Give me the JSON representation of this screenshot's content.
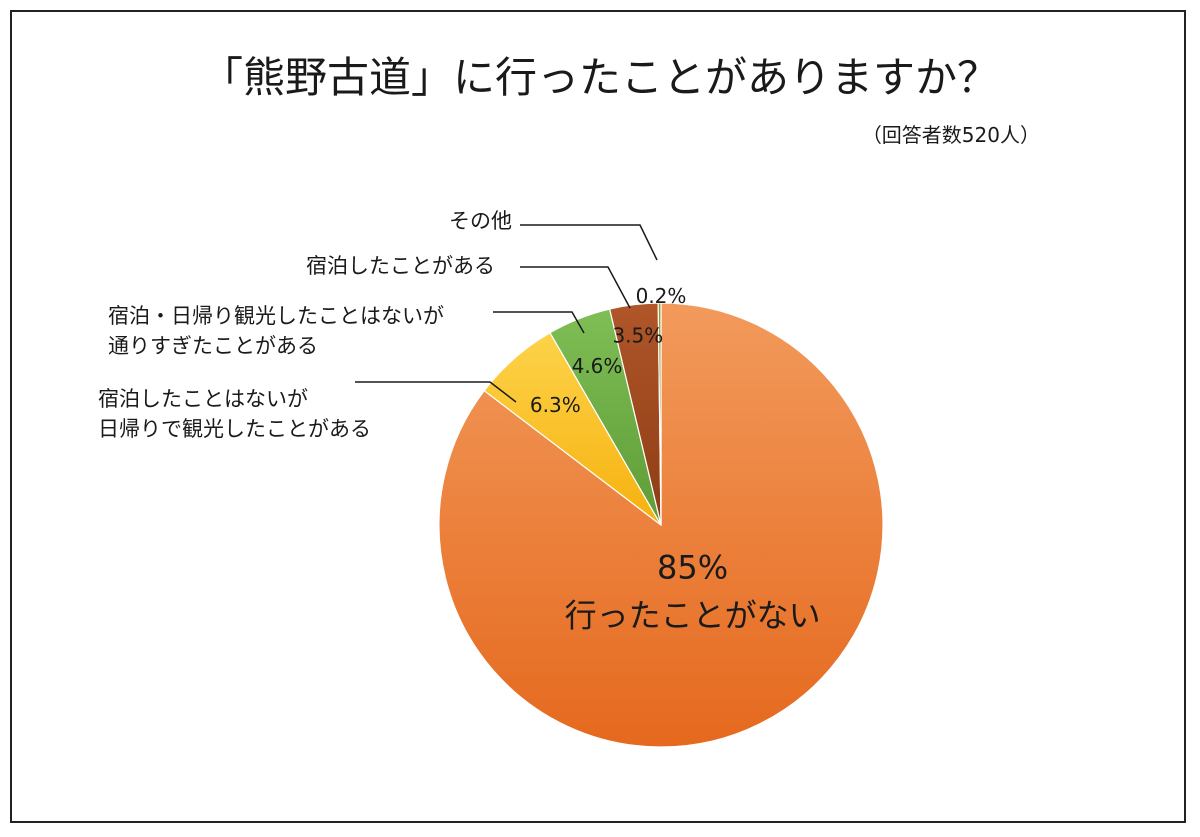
{
  "chart_data": {
    "type": "pie",
    "title": "「熊野古道」に行ったことがありますか？",
    "subtitle": "（回答者数520人）",
    "slices": [
      {
        "label": "行ったことがない",
        "value": 85,
        "value_label": "85%",
        "color": "#EE7D31"
      },
      {
        "label": "宿泊したことはないが 日帰りで観光したことがある",
        "label_lines": [
          "宿泊したことはないが",
          "日帰りで観光したことがある"
        ],
        "value": 6.3,
        "value_label": "6.3%",
        "color": "#FBBF1F"
      },
      {
        "label": "宿泊・日帰り観光したことはないが 通りすぎたことがある",
        "label_lines": [
          "宿泊・日帰り観光したことはないが",
          "通りすぎたことがある"
        ],
        "value": 4.6,
        "value_label": "4.6%",
        "color": "#70AD47"
      },
      {
        "label": "宿泊したことがある",
        "label_lines": [
          "宿泊したことがある"
        ],
        "value": 3.5,
        "value_label": "3.5%",
        "color": "#A24A1E"
      },
      {
        "label": "その他",
        "label_lines": [
          "その他"
        ],
        "value": 0.2,
        "value_label": "0.2%",
        "color": "#8A8A2A"
      }
    ],
    "start_angle_deg": 0,
    "direction": "clockwise",
    "legend": "none"
  }
}
